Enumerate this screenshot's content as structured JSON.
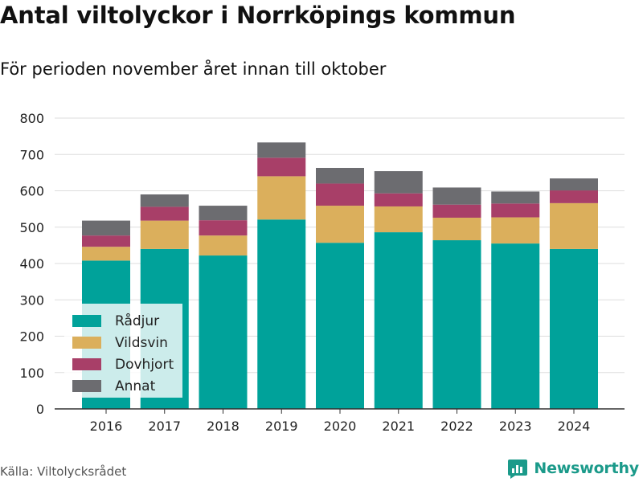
{
  "header": {
    "title": "Antal viltolyckor i Norrköpings kommun",
    "subtitle": "För perioden november året innan till oktober"
  },
  "footer": {
    "source": "Källa: Viltolycksrådet",
    "brand": "Newsworthy"
  },
  "colors": {
    "Rådjur": "#00a29a",
    "Vildsvin": "#dbaf5c",
    "Dovhjort": "#a83f68",
    "Annat": "#6c6c70"
  },
  "chart_data": {
    "type": "bar",
    "stacked": true,
    "title": "Antal viltolyckor i Norrköpings kommun",
    "subtitle": "För perioden november året innan till oktober",
    "categories": [
      "2016",
      "2017",
      "2018",
      "2019",
      "2020",
      "2021",
      "2022",
      "2023",
      "2024"
    ],
    "series": [
      {
        "name": "Rådjur",
        "values": [
          408,
          440,
          422,
          521,
          457,
          486,
          464,
          455,
          440
        ]
      },
      {
        "name": "Vildsvin",
        "values": [
          38,
          78,
          55,
          119,
          102,
          71,
          62,
          72,
          126
        ]
      },
      {
        "name": "Dovhjort",
        "values": [
          31,
          38,
          42,
          51,
          61,
          36,
          36,
          38,
          35
        ]
      },
      {
        "name": "Annat",
        "values": [
          41,
          34,
          40,
          42,
          43,
          61,
          47,
          33,
          33
        ]
      }
    ],
    "yticks": [
      0,
      100,
      200,
      300,
      400,
      500,
      600,
      700,
      800
    ],
    "ylim": [
      0,
      800
    ],
    "xlabel": "",
    "ylabel": "",
    "grid": true,
    "legend_position": "bottom-left"
  }
}
